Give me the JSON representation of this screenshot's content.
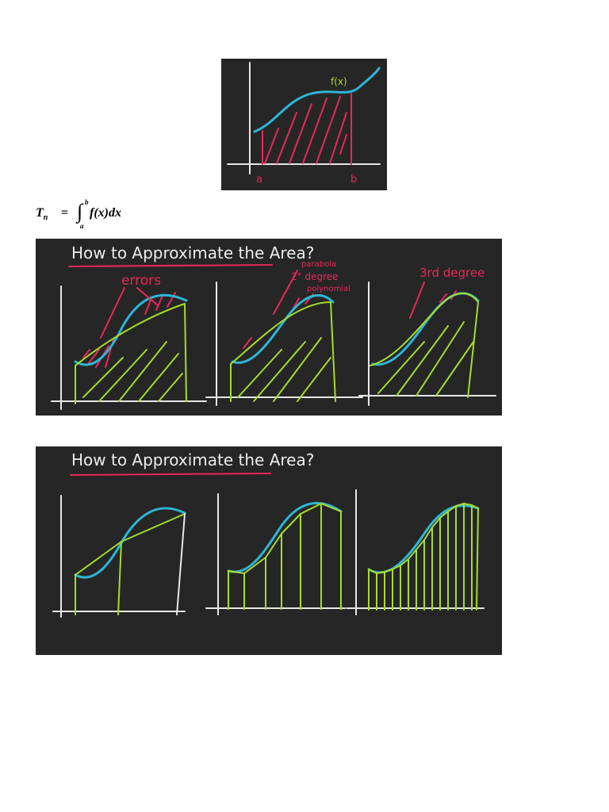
{
  "board1": {
    "function_label": "f(x)",
    "lower_limit_label": "a",
    "upper_limit_label": "b"
  },
  "formula": {
    "lhs": "T",
    "lhs_subscript": "n",
    "equals": "=",
    "integral_sign": "∫",
    "upper_limit": "b",
    "lower_limit": "a",
    "integrand": "f(x)dx"
  },
  "board2": {
    "title": "How to Approximate the Area?",
    "errors_label": "errors",
    "parabola_label": "parabola",
    "second_degree_label": "2° degree",
    "polynomial_label": "polynomial",
    "third_degree_label": "3rd degree"
  },
  "board3": {
    "title": "How to Approximate the Area?"
  },
  "colors": {
    "chalkboard": "#262626",
    "curve": "#2eb6d6",
    "pink_chalk": "#e8285a",
    "green_chalk": "#a6dc2c",
    "white_chalk": "#e8e8e8"
  }
}
